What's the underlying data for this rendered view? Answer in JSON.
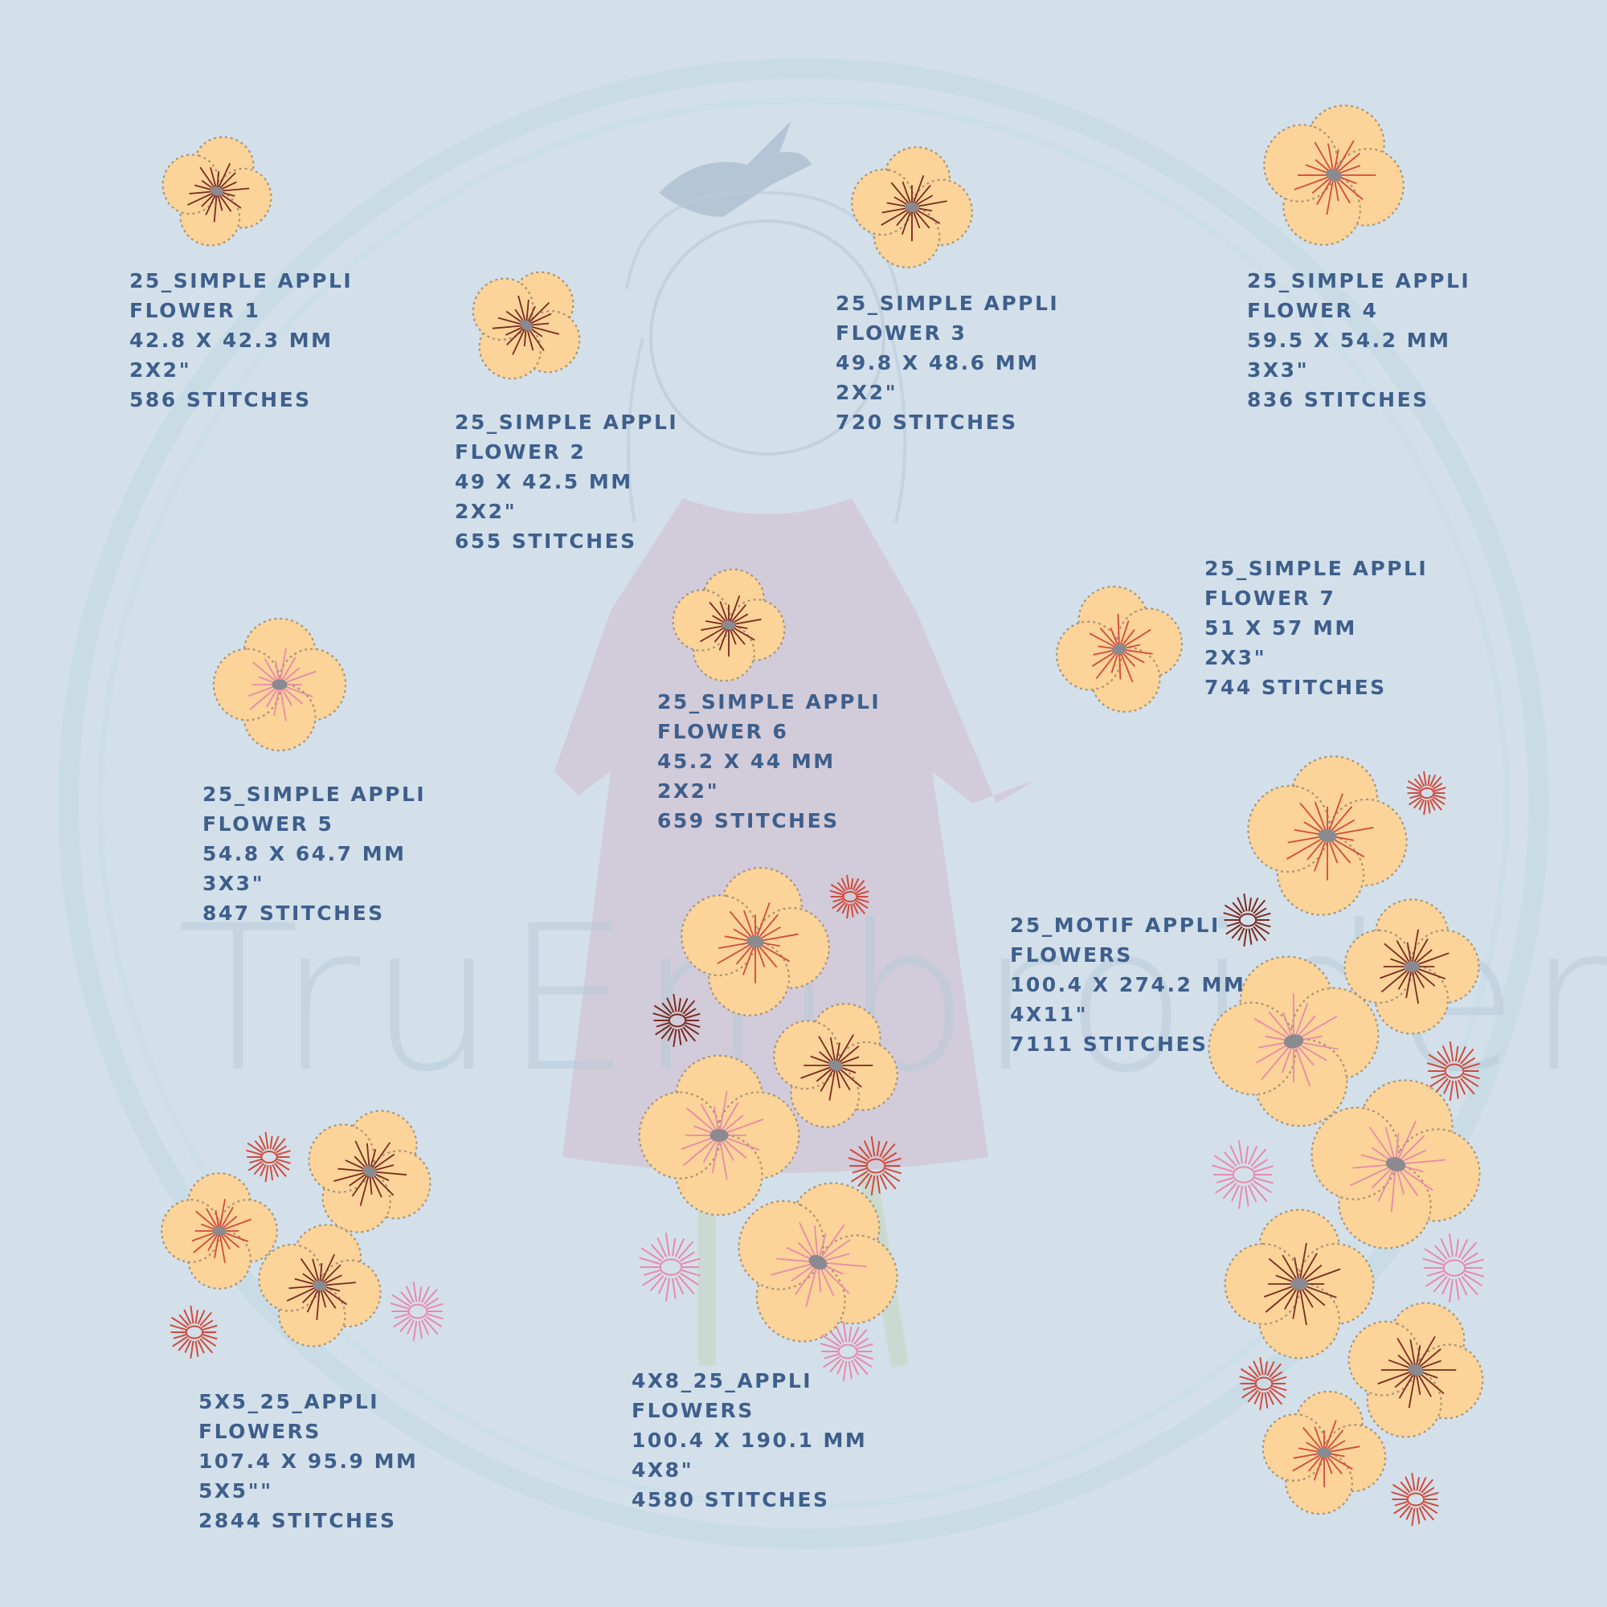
{
  "colors": {
    "background": "#d3e0ea",
    "text": "#3e5f8c",
    "petal_fill": "#fcd398",
    "petal_stroke": "#a59579",
    "thread_dark": "#7a2a22",
    "thread_red": "#d24a3c",
    "thread_pink": "#e889ac",
    "center": "#8a8a90",
    "watermark": "#b8cbd8"
  },
  "watermark": {
    "text": "TruEmbroidery"
  },
  "designs": [
    {
      "id": "flower-1",
      "name_line1": "25_Simple Appli",
      "name_line2": "Flower 1",
      "dimensions": "42.8 x 42.3 mm",
      "hoop": "2x2\"",
      "stitches": "586 stitches"
    },
    {
      "id": "flower-2",
      "name_line1": "25_Simple Appli",
      "name_line2": "Flower 2",
      "dimensions": "49 x 42.5 mm",
      "hoop": "2x2\"",
      "stitches": "655 stitches"
    },
    {
      "id": "flower-3",
      "name_line1": "25_Simple Appli",
      "name_line2": "Flower 3",
      "dimensions": "49.8 x 48.6 mm",
      "hoop": "2x2\"",
      "stitches": "720 stitches"
    },
    {
      "id": "flower-4",
      "name_line1": "25_Simple Appli",
      "name_line2": "Flower 4",
      "dimensions": "59.5 x 54.2 mm",
      "hoop": "3x3\"",
      "stitches": "836 stitches"
    },
    {
      "id": "flower-5",
      "name_line1": "25_Simple Appli",
      "name_line2": "Flower 5",
      "dimensions": "54.8 x 64.7 mm",
      "hoop": "3x3\"",
      "stitches": "847 stitches"
    },
    {
      "id": "flower-6",
      "name_line1": "25_Simple Appli",
      "name_line2": "Flower 6",
      "dimensions": "45.2 x 44 mm",
      "hoop": "2x2\"",
      "stitches": "659 stitches"
    },
    {
      "id": "flower-7",
      "name_line1": "25_Simple Appli",
      "name_line2": "Flower 7",
      "dimensions": "51 x 57 mm",
      "hoop": "2x3\"",
      "stitches": "744 stitches"
    },
    {
      "id": "motif-flowers",
      "name_line1": "25_Motif Appli",
      "name_line2": "Flowers",
      "dimensions": "100.4 x 274.2 mm",
      "hoop": "4x11\"",
      "stitches": "7111 stitches"
    },
    {
      "id": "5x5-flowers",
      "name_line1": "5x5_25_Appli",
      "name_line2": "Flowers",
      "dimensions": "107.4 x 95.9 mm",
      "hoop": "5x5\"\"",
      "stitches": "2844 stitches"
    },
    {
      "id": "4x8-flowers",
      "name_line1": "4x8_25_Appli",
      "name_line2": "Flowers",
      "dimensions": "100.4 x 190.1 mm",
      "hoop": "4x8\"",
      "stitches": "4580 stitches"
    }
  ]
}
